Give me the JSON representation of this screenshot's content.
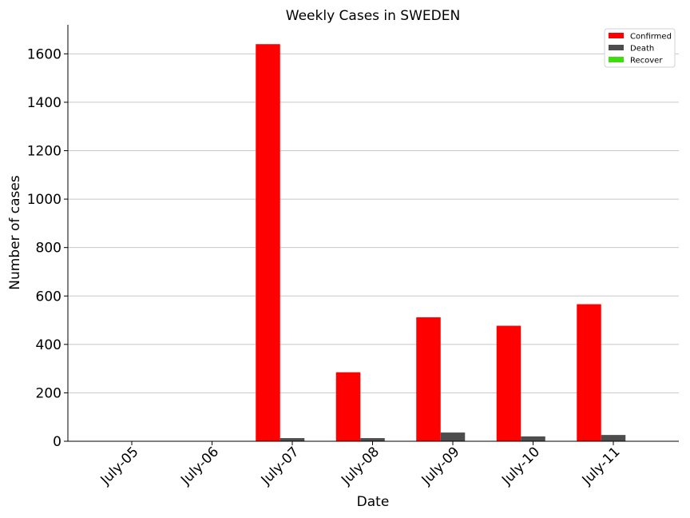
{
  "chart_data": {
    "type": "bar",
    "title": "Weekly Cases in SWEDEN",
    "xlabel": "Date",
    "ylabel": "Number of cases",
    "categories": [
      "July-05",
      "July-06",
      "July-07",
      "July-08",
      "July-09",
      "July-10",
      "July-11"
    ],
    "series": [
      {
        "name": "Confirmed",
        "color": "#ff0000",
        "values": [
          0,
          0,
          1640,
          285,
          512,
          477,
          566
        ]
      },
      {
        "name": "Death",
        "color": "#4d4d4d",
        "values": [
          0,
          0,
          13,
          13,
          36,
          20,
          26
        ]
      },
      {
        "name": "Recover",
        "color": "#3fdc10",
        "values": [
          0,
          0,
          0,
          0,
          0,
          0,
          0
        ]
      }
    ],
    "ylim": [
      0,
      1720
    ],
    "yticks": [
      0,
      200,
      400,
      600,
      800,
      1000,
      1200,
      1400,
      1600
    ],
    "grid": "y",
    "legend": "top-right"
  }
}
